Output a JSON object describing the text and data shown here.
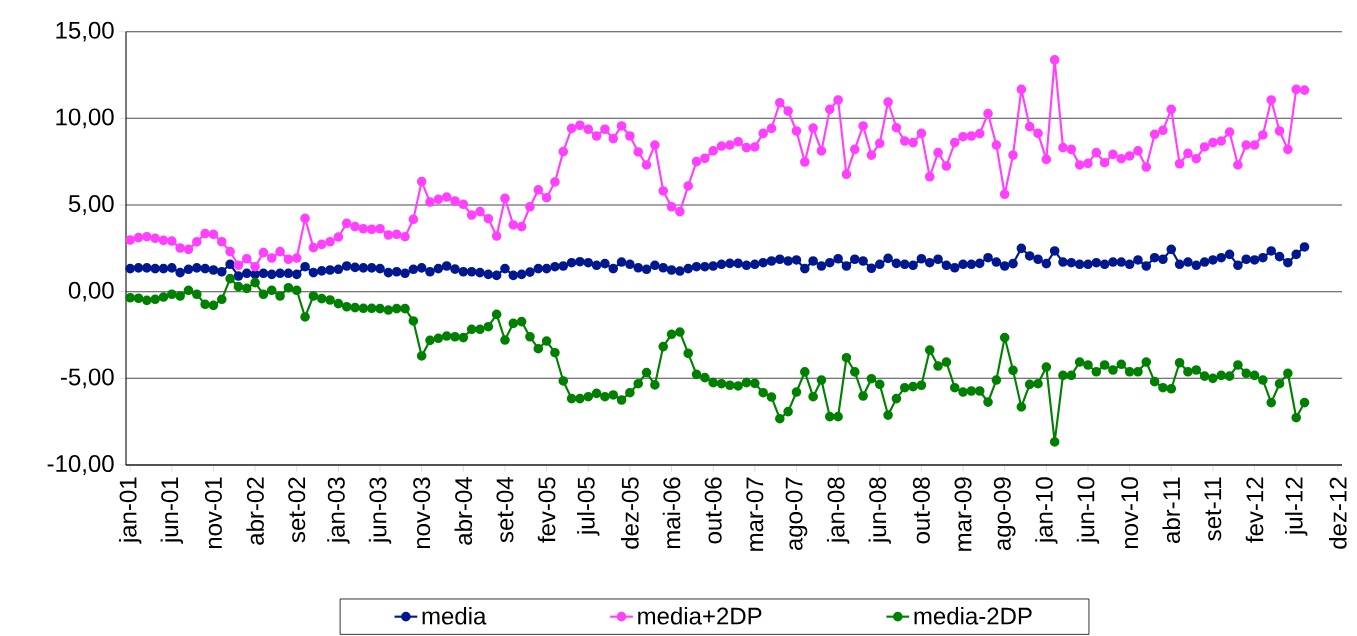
{
  "chart_data": {
    "type": "line",
    "categories": [
      "jan-01",
      null,
      null,
      null,
      null,
      "jun-01",
      null,
      null,
      null,
      null,
      "nov-01",
      null,
      null,
      null,
      null,
      "abr-02",
      null,
      null,
      null,
      null,
      "set-02",
      null,
      null,
      null,
      null,
      "jan-03",
      null,
      null,
      null,
      null,
      "jun-03",
      null,
      null,
      null,
      null,
      "nov-03",
      null,
      null,
      null,
      null,
      "abr-04",
      null,
      null,
      null,
      null,
      "set-04",
      null,
      null,
      null,
      null,
      "fev-05",
      null,
      null,
      null,
      null,
      "jul-05",
      null,
      null,
      null,
      null,
      "dez-05",
      null,
      null,
      null,
      null,
      "mai-06",
      null,
      null,
      null,
      null,
      "out-06",
      null,
      null,
      null,
      null,
      "mar-07",
      null,
      null,
      null,
      null,
      "ago-07",
      null,
      null,
      null,
      null,
      "jan-08",
      null,
      null,
      null,
      null,
      "jun-08",
      null,
      null,
      null,
      null,
      "out-08",
      null,
      null,
      null,
      null,
      "mar-09",
      null,
      null,
      null,
      null,
      "ago-09",
      null,
      null,
      null,
      null,
      "jan-10",
      null,
      null,
      null,
      null,
      "jun-10",
      null,
      null,
      null,
      null,
      "nov-10",
      null,
      null,
      null,
      null,
      "abr-11",
      null,
      null,
      null,
      null,
      "set-11",
      null,
      null,
      null,
      null,
      "fev-12",
      null,
      null,
      null,
      null,
      "jul-12",
      null,
      null,
      null,
      null,
      "dez-12"
    ],
    "series": [
      {
        "name": "media",
        "color": "#00188f",
        "values": [
          1.33,
          1.37,
          1.37,
          1.33,
          1.33,
          1.37,
          1.1,
          1.29,
          1.37,
          1.33,
          1.25,
          1.15,
          1.58,
          0.9,
          1.06,
          1.0,
          1.06,
          1.0,
          1.06,
          1.06,
          1.0,
          1.44,
          1.1,
          1.2,
          1.25,
          1.29,
          1.48,
          1.4,
          1.37,
          1.37,
          1.33,
          1.1,
          1.15,
          1.06,
          1.29,
          1.37,
          1.15,
          1.33,
          1.48,
          1.3,
          1.15,
          1.15,
          1.1,
          1.0,
          0.94,
          1.33,
          0.94,
          1.0,
          1.13,
          1.33,
          1.33,
          1.44,
          1.48,
          1.67,
          1.73,
          1.67,
          1.52,
          1.62,
          1.33,
          1.71,
          1.58,
          1.38,
          1.29,
          1.52,
          1.38,
          1.25,
          1.19,
          1.33,
          1.44,
          1.44,
          1.48,
          1.58,
          1.63,
          1.63,
          1.52,
          1.58,
          1.67,
          1.77,
          1.87,
          1.77,
          1.83,
          1.33,
          1.77,
          1.48,
          1.67,
          1.9,
          1.48,
          1.87,
          1.77,
          1.35,
          1.58,
          1.92,
          1.63,
          1.58,
          1.52,
          1.9,
          1.67,
          1.87,
          1.52,
          1.38,
          1.58,
          1.58,
          1.63,
          1.96,
          1.71,
          1.48,
          1.62,
          2.5,
          2.06,
          1.87,
          1.62,
          2.35,
          1.71,
          1.67,
          1.58,
          1.58,
          1.67,
          1.58,
          1.71,
          1.71,
          1.58,
          1.83,
          1.48,
          1.96,
          1.87,
          2.44,
          1.58,
          1.71,
          1.52,
          1.71,
          1.83,
          1.96,
          2.15,
          1.52,
          1.87,
          1.83,
          1.96,
          2.35,
          2.02,
          1.67,
          2.15,
          2.58,
          null,
          null,
          null,
          null
        ]
      },
      {
        "name": "media+2DP",
        "color": "#ff40ff",
        "values": [
          2.98,
          3.12,
          3.17,
          3.08,
          2.96,
          2.92,
          2.52,
          2.44,
          2.87,
          3.35,
          3.31,
          2.88,
          2.31,
          1.52,
          1.9,
          1.44,
          2.25,
          1.94,
          2.31,
          1.87,
          1.94,
          4.23,
          2.54,
          2.73,
          2.88,
          3.15,
          3.94,
          3.75,
          3.63,
          3.6,
          3.63,
          3.27,
          3.31,
          3.17,
          4.17,
          6.35,
          5.17,
          5.33,
          5.46,
          5.23,
          5.04,
          4.42,
          4.62,
          4.21,
          3.21,
          5.38,
          3.85,
          3.75,
          4.9,
          5.87,
          5.42,
          6.33,
          8.08,
          9.42,
          9.6,
          9.37,
          8.98,
          9.37,
          8.83,
          9.56,
          8.98,
          8.06,
          7.31,
          8.46,
          5.81,
          4.9,
          4.62,
          6.1,
          7.5,
          7.69,
          8.12,
          8.4,
          8.46,
          8.65,
          8.31,
          8.35,
          9.13,
          9.42,
          10.9,
          10.42,
          9.27,
          7.48,
          9.44,
          8.12,
          10.52,
          11.06,
          6.77,
          8.21,
          9.56,
          7.88,
          8.56,
          10.94,
          9.46,
          8.69,
          8.6,
          9.13,
          6.63,
          8.02,
          7.25,
          8.6,
          8.94,
          8.98,
          9.12,
          10.27,
          8.46,
          5.62,
          7.88,
          11.67,
          9.52,
          9.13,
          7.63,
          13.37,
          8.31,
          8.21,
          7.31,
          7.4,
          8.02,
          7.44,
          7.92,
          7.67,
          7.83,
          8.12,
          7.19,
          9.08,
          9.31,
          10.52,
          7.38,
          7.98,
          7.67,
          8.35,
          8.6,
          8.69,
          9.21,
          7.31,
          8.46,
          8.46,
          9.04,
          11.06,
          9.27,
          8.21,
          11.67,
          11.63,
          null,
          null,
          null,
          null
        ]
      },
      {
        "name": "media-2DP",
        "color": "#008000",
        "values": [
          -0.35,
          -0.38,
          -0.5,
          -0.44,
          -0.31,
          -0.15,
          -0.25,
          0.08,
          -0.15,
          -0.73,
          -0.79,
          -0.44,
          0.75,
          0.29,
          0.19,
          0.52,
          -0.15,
          0.08,
          -0.25,
          0.23,
          0.08,
          -1.46,
          -0.25,
          -0.4,
          -0.48,
          -0.69,
          -0.87,
          -0.92,
          -0.96,
          -0.96,
          -0.98,
          -1.06,
          -0.98,
          -0.98,
          -1.69,
          -3.71,
          -2.81,
          -2.69,
          -2.56,
          -2.6,
          -2.65,
          -2.17,
          -2.17,
          -2.02,
          -1.31,
          -2.79,
          -1.83,
          -1.73,
          -2.6,
          -3.29,
          -2.85,
          -3.52,
          -5.15,
          -6.17,
          -6.17,
          -6.06,
          -5.87,
          -6.06,
          -5.96,
          -6.25,
          -5.83,
          -5.31,
          -4.67,
          -5.38,
          -3.17,
          -2.46,
          -2.33,
          -3.56,
          -4.77,
          -4.96,
          -5.25,
          -5.31,
          -5.4,
          -5.44,
          -5.25,
          -5.29,
          -5.83,
          -6.08,
          -7.33,
          -6.92,
          -5.79,
          -4.63,
          -6.06,
          -5.1,
          -7.21,
          -7.21,
          -3.81,
          -4.63,
          -6.02,
          -5.02,
          -5.35,
          -7.12,
          -6.17,
          -5.54,
          -5.48,
          -5.4,
          -3.37,
          -4.29,
          -4.06,
          -5.54,
          -5.79,
          -5.73,
          -5.73,
          -6.37,
          -5.1,
          -2.65,
          -4.54,
          -6.65,
          -5.35,
          -5.31,
          -4.35,
          -8.67,
          -4.83,
          -4.83,
          -4.06,
          -4.23,
          -4.62,
          -4.23,
          -4.52,
          -4.19,
          -4.62,
          -4.62,
          -4.06,
          -5.19,
          -5.54,
          -5.6,
          -4.1,
          -4.62,
          -4.52,
          -4.87,
          -5.0,
          -4.83,
          -4.87,
          -4.23,
          -4.71,
          -4.83,
          -5.1,
          -6.4,
          -5.31,
          -4.71,
          -7.27,
          -6.4,
          null,
          null,
          null,
          null
        ]
      }
    ],
    "ylim": [
      -10,
      15
    ],
    "yticks": [
      {
        "value": -10,
        "label": "-10,00"
      },
      {
        "value": -5,
        "label": "-5,00"
      },
      {
        "value": 0,
        "label": "0,00"
      },
      {
        "value": 5,
        "label": "5,00"
      },
      {
        "value": 10,
        "label": "10,00"
      },
      {
        "value": 15,
        "label": "15,00"
      }
    ],
    "grid": "y",
    "legend": "bottom",
    "marker": "circle",
    "line_style": "solid"
  }
}
